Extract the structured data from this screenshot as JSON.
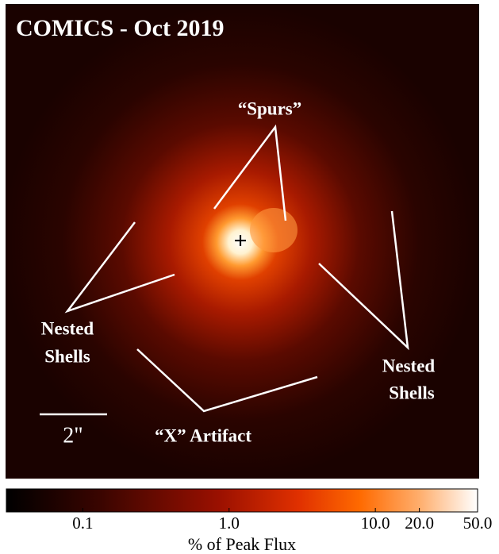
{
  "title": "COMICS - Oct 2019",
  "annotations": {
    "spurs": "“Spurs”",
    "nested_left": [
      "Nested",
      "Shells"
    ],
    "nested_right": [
      "Nested",
      "Shells"
    ],
    "x_artifact": "“X” Artifact",
    "scale_bar": "2\""
  },
  "colorbar": {
    "label": "% of Peak Flux",
    "log": true,
    "lim": [
      0.03,
      50
    ],
    "ticks": [
      0.1,
      {
        "value": 1,
        "label": "1.0"
      },
      {
        "value": 10,
        "label": "10.0"
      },
      {
        "value": 20,
        "label": "20.0"
      },
      {
        "value": 50,
        "label": "50.0"
      }
    ]
  }
}
